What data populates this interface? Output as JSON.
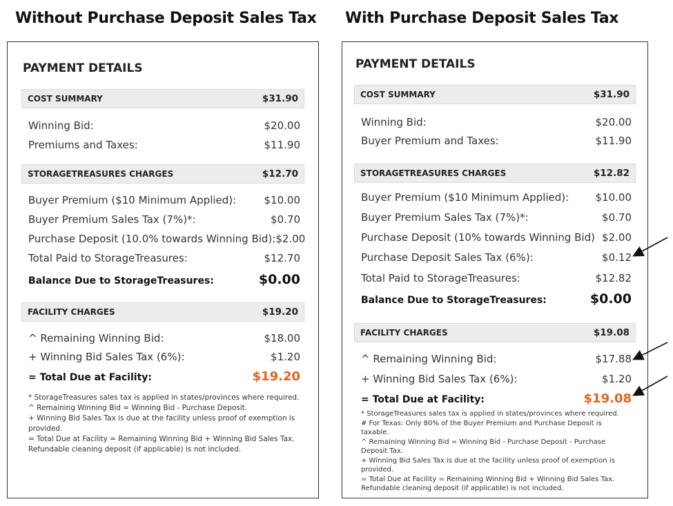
{
  "left": {
    "heading": "Without Purchase Deposit Sales Tax",
    "title": "PAYMENT DETAILS",
    "cost_summary": {
      "label": "COST SUMMARY",
      "amount": "$31.90"
    },
    "cost_rows": [
      {
        "label": "Winning Bid:",
        "value": "$20.00"
      },
      {
        "label": "Premiums and Taxes:",
        "value": "$11.90"
      }
    ],
    "st_charges": {
      "label": "STORAGETREASURES CHARGES",
      "amount": "$12.70"
    },
    "st_rows": [
      {
        "label": "Buyer Premium ($10 Minimum Applied):",
        "value": "$10.00"
      },
      {
        "label": "Buyer Premium Sales Tax (7%)*:",
        "value": "$0.70"
      },
      {
        "label": "Purchase Deposit (10.0% towards Winning Bid):",
        "value": "$2.00"
      },
      {
        "label": "Total Paid to StorageTreasures:",
        "value": "$12.70"
      }
    ],
    "balance": {
      "label": "Balance Due to StorageTreasures:",
      "value": "$0.00"
    },
    "facility": {
      "label": "FACILITY CHARGES",
      "amount": "$19.20"
    },
    "facility_rows": [
      {
        "label": "^ Remaining Winning Bid:",
        "value": "$18.00"
      },
      {
        "label": "+ Winning Bid Sales Tax (6%):",
        "value": "$1.20"
      }
    ],
    "total": {
      "label": "= Total Due at Facility:",
      "value": "$19.20"
    },
    "notes": [
      "* StorageTreasures sales tax is applied in states/provinces where required.",
      "^ Remaining Winning Bid = Winning Bid - Purchase Deposit.",
      "+ Winning Bid Sales Tax is due at the facility unless proof of exemption is",
      "provided.",
      "= Total Due at Facility = Remaining Winning Bid + Winning Bid Sales Tax.",
      "Refundable cleaning deposit (if applicable) is not included."
    ]
  },
  "right": {
    "heading": "With Purchase Deposit Sales Tax",
    "title": "PAYMENT DETAILS",
    "cost_summary": {
      "label": "COST SUMMARY",
      "amount": "$31.90"
    },
    "cost_rows": [
      {
        "label": "Winning Bid:",
        "value": "$20.00"
      },
      {
        "label": "Buyer Premium and Taxes:",
        "value": "$11.90"
      }
    ],
    "st_charges": {
      "label": "STORAGETREASURES CHARGES",
      "amount": "$12.82"
    },
    "st_rows": [
      {
        "label": "Buyer Premium ($10 Minimum Applied):",
        "value": "$10.00"
      },
      {
        "label": "Buyer Premium Sales Tax (7%)*:",
        "value": "$0.70"
      },
      {
        "label": "Purchase Deposit (10% towards Winning Bid)",
        "value": "$2.00"
      },
      {
        "label": "Purchase Deposit Sales Tax (6%):",
        "value": "$0.12"
      },
      {
        "label": "Total Paid to StorageTreasures:",
        "value": "$12.82"
      }
    ],
    "balance": {
      "label": "Balance Due to StorageTreasures:",
      "value": "$0.00"
    },
    "facility": {
      "label": "FACILITY CHARGES",
      "amount": "$19.08"
    },
    "facility_rows": [
      {
        "label": "^ Remaining Winning Bid:",
        "value": "$17.88"
      },
      {
        "label": "+ Winning Bid Sales Tax (6%):",
        "value": "$1.20"
      }
    ],
    "total": {
      "label": "= Total Due at Facility:",
      "value": "$19.08"
    },
    "notes": [
      "* StorageTreasures sales tax is applied in states/provinces where required.",
      "# For Texas: Only 80% of the Buyer Premium and Purchase Deposit is",
      "taxable.",
      "^ Remaining Winning Bid = Winning Bid - Purchase Deposit - Purchase",
      "Deposit Tax.",
      "+ Winning Bid Sales Tax is due at the facility unless proof of exemption is",
      "provided.",
      "= Total Due at Facility = Remaining Winning Bid + Winning Bid Sales Tax.",
      "Refundable cleaning deposit (if applicable) is not included."
    ]
  },
  "colors": {
    "accent": "#e8601c",
    "bar": "#ececec",
    "border": "#333333"
  }
}
